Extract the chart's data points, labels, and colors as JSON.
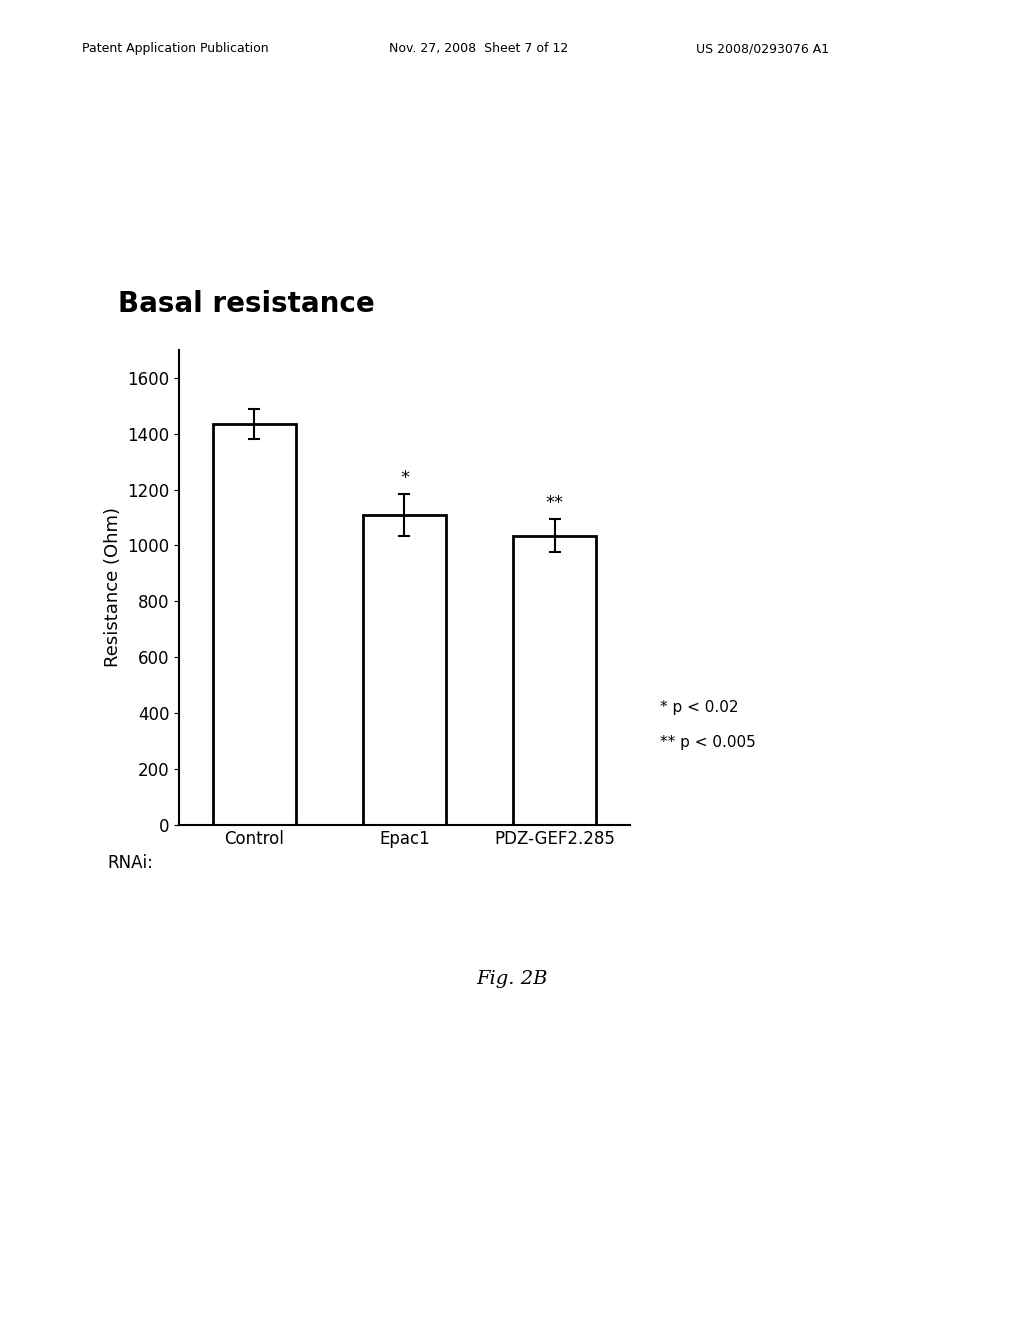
{
  "title": "Basal resistance",
  "categories": [
    "Control",
    "Epac1",
    "PDZ-GEF2.285"
  ],
  "values": [
    1435,
    1110,
    1035
  ],
  "errors": [
    55,
    75,
    60
  ],
  "ylabel": "Resistance (Ohm)",
  "rnai_label": "RNAi:",
  "ylim": [
    0,
    1700
  ],
  "yticks": [
    0,
    200,
    400,
    600,
    800,
    1000,
    1200,
    1400,
    1600
  ],
  "bar_color": "#ffffff",
  "bar_edgecolor": "#000000",
  "bar_linewidth": 2.0,
  "bar_width": 0.55,
  "significance": [
    "",
    "*",
    "**"
  ],
  "legend_text_1": "* p < 0.02",
  "legend_text_2": "** p < 0.005",
  "header_left": "Patent Application Publication",
  "header_mid": "Nov. 27, 2008  Sheet 7 of 12",
  "header_right": "US 2008/0293076 A1",
  "fig_label": "Fig. 2B",
  "background_color": "#ffffff",
  "title_fontsize": 20,
  "axis_fontsize": 13,
  "tick_fontsize": 12,
  "header_fontsize": 9,
  "sig_fontsize": 13
}
